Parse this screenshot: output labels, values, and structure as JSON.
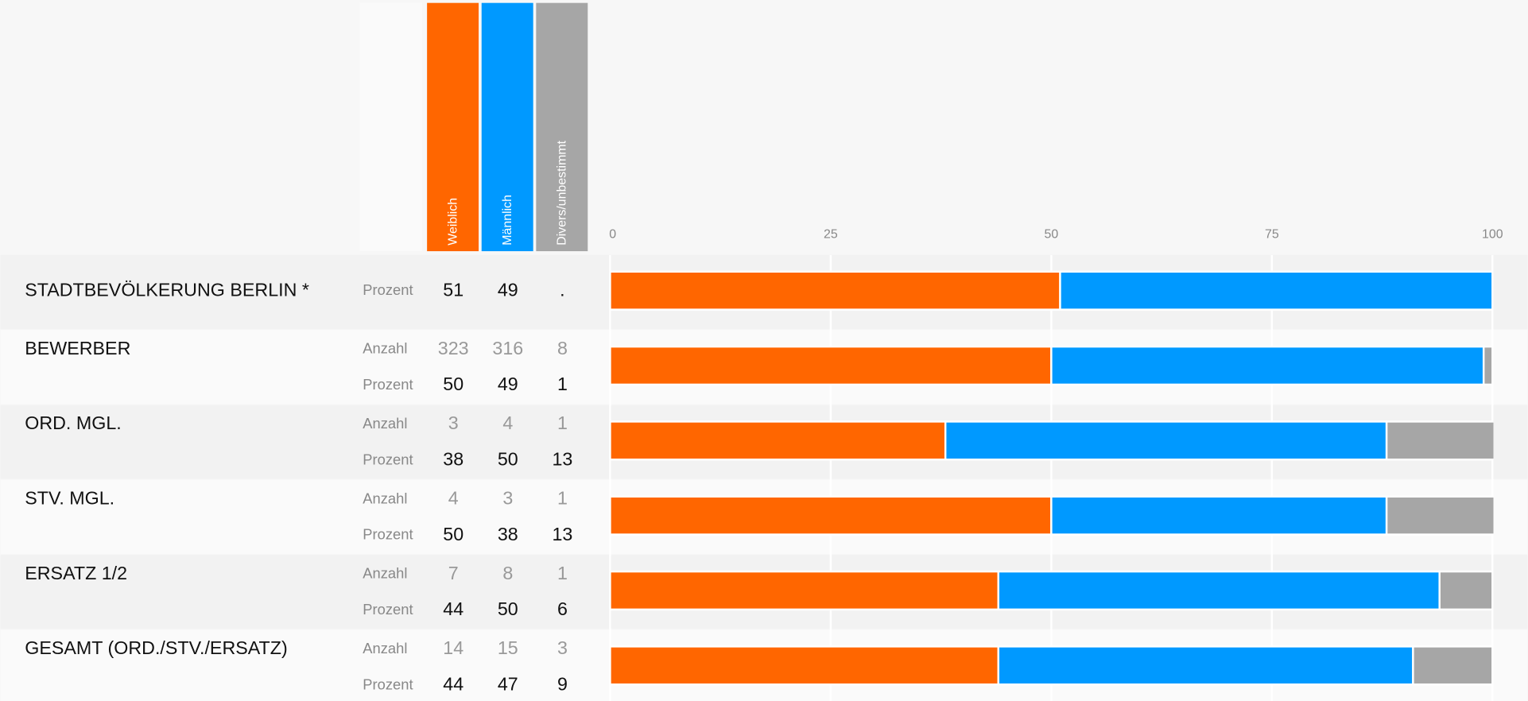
{
  "chart_data": {
    "type": "stacked-bar-table",
    "categories": [
      "STADTBEVÖLKERUNG BERLIN *",
      "BEWERBER",
      "ORD. MGL.",
      "STV. MGL.",
      "ERSATZ 1/2",
      "GESAMT (ORD./STV./ERSATZ)"
    ],
    "count_label": "Anzahl",
    "percent_label": "Prozent",
    "series": [
      {
        "name": "Weiblich",
        "color": "#ff6600",
        "counts": [
          null,
          323,
          3,
          4,
          7,
          14
        ],
        "values": [
          51,
          50,
          38,
          50,
          44,
          44
        ]
      },
      {
        "name": "Männlich",
        "color": "#0099ff",
        "counts": [
          null,
          316,
          4,
          3,
          8,
          15
        ],
        "values": [
          49,
          49,
          50,
          38,
          50,
          47
        ]
      },
      {
        "name": "Divers/unbestimmt",
        "color": "#a6a6a6",
        "counts": [
          null,
          8,
          1,
          1,
          1,
          3
        ],
        "values": [
          null,
          1,
          13,
          13,
          6,
          9
        ],
        "value_labels": [
          ".",
          "1",
          "13",
          "13",
          "6",
          "9"
        ]
      }
    ],
    "xlim": [
      0,
      100
    ],
    "xticks": [
      0,
      25,
      50,
      75,
      100
    ],
    "grid": true
  }
}
